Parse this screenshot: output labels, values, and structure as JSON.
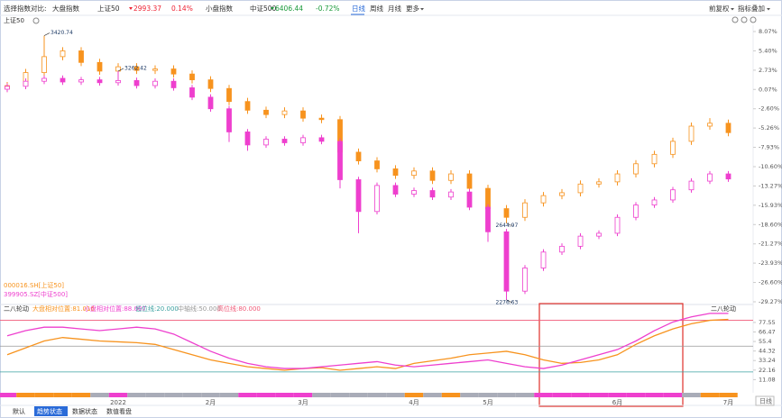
{
  "toolbar": {
    "compare_label": "选择指数对比:",
    "large_label": "大盘指数",
    "large_index": "上证50",
    "large_price": "2993.37",
    "large_change": "0.14%",
    "small_label": "小盘指数",
    "small_index": "中证500",
    "small_price": "6406.44",
    "small_change": "-0.72%",
    "periods": [
      "日线",
      "周线",
      "月线",
      "更多"
    ],
    "adjust": "前复权",
    "overlay": "指标叠加"
  },
  "index_selector": "上证50",
  "chart_data": [
    {
      "type": "candlestick",
      "categories": [
        null,
        null,
        null,
        null,
        null,
        null,
        "2022",
        null,
        null,
        null,
        null,
        "2月",
        null,
        null,
        null,
        null,
        "3月",
        null,
        null,
        null,
        null,
        null,
        "4月",
        null,
        null,
        null,
        "5月",
        null,
        null,
        null,
        null,
        null,
        null,
        "6月",
        null,
        null,
        null,
        null,
        null,
        "7月"
      ],
      "ylim": [
        -29.27,
        8.07
      ],
      "yticks": [
        {
          "value": 8.07,
          "label": "8.07%"
        },
        {
          "value": 5.4,
          "label": "5.40%"
        },
        {
          "value": 2.73,
          "label": "2.73%"
        },
        {
          "value": 0.07,
          "label": "0.07%"
        },
        {
          "value": -2.6,
          "label": "-2.60%"
        },
        {
          "value": -5.26,
          "label": "-5.26%"
        },
        {
          "value": -7.93,
          "label": "-7.93%"
        },
        {
          "value": -10.6,
          "label": "-10.60%"
        },
        {
          "value": -13.27,
          "label": "-13.27%"
        },
        {
          "value": -15.93,
          "label": "-15.93%"
        },
        {
          "value": -18.6,
          "label": "-18.60%"
        },
        {
          "value": -21.27,
          "label": "-21.27%"
        },
        {
          "value": -23.93,
          "label": "-23.93%"
        },
        {
          "value": -26.6,
          "label": "-26.60%"
        },
        {
          "value": -29.27,
          "label": "-29.27%"
        }
      ],
      "series": [
        {
          "name": "000016.SH[上证50]",
          "color": "#f7931e",
          "ohlc": [
            [
              0.2,
              1.1,
              -0.3,
              0.6
            ],
            [
              0.6,
              2.9,
              0.1,
              2.4
            ],
            [
              2.4,
              7.5,
              1.9,
              4.6
            ],
            [
              4.6,
              5.9,
              4.1,
              5.4
            ],
            [
              5.4,
              5.9,
              3.3,
              3.8
            ],
            [
              3.8,
              4.3,
              2.1,
              2.6
            ],
            [
              2.6,
              3.7,
              2.1,
              3.2
            ],
            [
              3.2,
              3.7,
              2.2,
              2.7
            ],
            [
              2.7,
              3.4,
              2.2,
              2.9
            ],
            [
              2.9,
              3.4,
              1.7,
              2.2
            ],
            [
              2.2,
              2.7,
              0.9,
              1.4
            ],
            [
              1.4,
              1.9,
              -0.3,
              0.2
            ],
            [
              0.2,
              0.7,
              -2.1,
              -1.6
            ],
            [
              -1.6,
              -1.1,
              -3.3,
              -2.8
            ],
            [
              -2.8,
              -2.3,
              -3.9,
              -3.4
            ],
            [
              -3.4,
              -2.4,
              -3.9,
              -2.9
            ],
            [
              -2.9,
              -2.4,
              -4.4,
              -3.9
            ],
            [
              -3.9,
              -3.4,
              -4.6,
              -4.1
            ],
            [
              -4.1,
              -3.6,
              -9.1,
              -8.6
            ],
            [
              -8.6,
              -8.1,
              -10.3,
              -9.8
            ],
            [
              -9.8,
              -9.3,
              -11.4,
              -10.9
            ],
            [
              -10.9,
              -10.4,
              -12.3,
              -11.8
            ],
            [
              -11.8,
              -10.7,
              -12.3,
              -11.2
            ],
            [
              -11.2,
              -10.7,
              -13.0,
              -12.5
            ],
            [
              -12.5,
              -11.1,
              -13.0,
              -11.6
            ],
            [
              -11.6,
              -11.1,
              -14.1,
              -13.6
            ],
            [
              -13.6,
              -13.1,
              -16.9,
              -16.4
            ],
            [
              -16.4,
              -15.9,
              -18.4,
              -17.6
            ],
            [
              -17.6,
              -15.1,
              -18.1,
              -15.6
            ],
            [
              -15.6,
              -14.1,
              -16.1,
              -14.6
            ],
            [
              -14.6,
              -13.7,
              -15.1,
              -14.2
            ],
            [
              -14.2,
              -12.5,
              -14.7,
              -13.0
            ],
            [
              -13.0,
              -12.2,
              -13.5,
              -12.7
            ],
            [
              -12.7,
              -11.1,
              -13.2,
              -11.6
            ],
            [
              -11.6,
              -9.7,
              -12.1,
              -10.2
            ],
            [
              -10.2,
              -8.4,
              -10.7,
              -8.9
            ],
            [
              -8.9,
              -6.6,
              -9.4,
              -7.1
            ],
            [
              -7.1,
              -4.5,
              -7.6,
              -5.0
            ],
            [
              -5.0,
              -3.9,
              -5.5,
              -4.6
            ],
            [
              -4.6,
              -4.1,
              -6.4,
              -5.9
            ]
          ],
          "annotations": [
            {
              "index": 2,
              "text": "3420.74"
            },
            {
              "index": 27,
              "text": "2644.97"
            }
          ]
        },
        {
          "name": "399905.SZ[中证500]",
          "color": "#ee3fce",
          "ohlc": [
            [
              0.1,
              0.9,
              -0.3,
              0.5
            ],
            [
              0.5,
              1.6,
              0.1,
              1.2
            ],
            [
              1.2,
              2.0,
              0.8,
              1.6
            ],
            [
              1.6,
              2.0,
              0.7,
              1.1
            ],
            [
              1.1,
              1.8,
              0.7,
              1.4
            ],
            [
              1.4,
              1.8,
              0.6,
              1.0
            ],
            [
              1.0,
              2.6,
              0.6,
              1.3
            ],
            [
              1.3,
              1.7,
              0.2,
              0.6
            ],
            [
              0.6,
              1.6,
              0.2,
              1.2
            ],
            [
              1.2,
              1.6,
              -0.1,
              0.3
            ],
            [
              0.3,
              0.7,
              -1.4,
              -1.0
            ],
            [
              -1.0,
              -0.6,
              -3.0,
              -2.6
            ],
            [
              -2.6,
              -2.2,
              -7.2,
              -5.8
            ],
            [
              -5.8,
              -5.4,
              -8.4,
              -7.6
            ],
            [
              -7.6,
              -6.4,
              -8.0,
              -6.8
            ],
            [
              -6.8,
              -6.4,
              -7.7,
              -7.3
            ],
            [
              -7.3,
              -6.2,
              -7.7,
              -6.6
            ],
            [
              -6.6,
              -6.2,
              -7.5,
              -7.1
            ],
            [
              -7.1,
              -6.7,
              -13.6,
              -12.4
            ],
            [
              -12.4,
              -12.0,
              -19.8,
              -16.8
            ],
            [
              -16.8,
              -12.8,
              -17.2,
              -13.2
            ],
            [
              -13.2,
              -12.8,
              -14.8,
              -14.4
            ],
            [
              -14.4,
              -13.5,
              -14.8,
              -13.9
            ],
            [
              -13.9,
              -13.5,
              -15.2,
              -14.8
            ],
            [
              -14.8,
              -13.7,
              -15.2,
              -14.1
            ],
            [
              -14.1,
              -13.7,
              -16.6,
              -16.2
            ],
            [
              -16.2,
              -15.8,
              -21.0,
              -19.6
            ],
            [
              -19.6,
              -19.2,
              -29.0,
              -27.8
            ],
            [
              -27.8,
              -24.2,
              -28.2,
              -24.6
            ],
            [
              -24.6,
              -22.0,
              -25.0,
              -22.4
            ],
            [
              -22.4,
              -21.2,
              -22.8,
              -21.6
            ],
            [
              -21.6,
              -19.8,
              -22.0,
              -20.2
            ],
            [
              -20.2,
              -19.4,
              -20.6,
              -19.8
            ],
            [
              -19.8,
              -17.2,
              -20.2,
              -17.6
            ],
            [
              -17.6,
              -15.5,
              -18.0,
              -15.9
            ],
            [
              -15.9,
              -14.8,
              -16.3,
              -15.2
            ],
            [
              -15.2,
              -13.4,
              -15.6,
              -13.8
            ],
            [
              -13.8,
              -12.2,
              -14.2,
              -12.6
            ],
            [
              -12.6,
              -11.2,
              -13.0,
              -11.6
            ],
            [
              -11.6,
              -11.2,
              -12.7,
              -12.3
            ]
          ],
          "annotations": [
            {
              "index": 6,
              "text": "3262.42"
            },
            {
              "index": 27,
              "text": "2276.63"
            }
          ]
        }
      ]
    },
    {
      "type": "line",
      "title": "二八轮动",
      "ylim": [
        0,
        90
      ],
      "yticks": [
        77.55,
        66.47,
        55.4,
        44.32,
        33.24,
        22.16,
        11.08
      ],
      "series": [
        {
          "name": "大盘相对位置:81.016",
          "color": "#f7931e",
          "values": [
            40,
            48,
            56,
            60,
            58,
            56,
            55,
            54,
            52,
            46,
            40,
            34,
            30,
            26,
            24,
            22,
            24,
            25,
            22,
            24,
            26,
            24,
            30,
            33,
            36,
            40,
            42,
            44,
            40,
            34,
            30,
            31,
            34,
            40,
            52,
            62,
            70,
            76,
            80,
            81.016
          ]
        },
        {
          "name": "小盘相对位置:88.007",
          "color": "#ee3fce",
          "values": [
            62,
            68,
            72,
            72,
            70,
            68,
            70,
            72,
            70,
            64,
            54,
            44,
            36,
            30,
            26,
            24,
            24,
            26,
            28,
            30,
            32,
            28,
            26,
            28,
            30,
            32,
            34,
            30,
            26,
            24,
            28,
            34,
            40,
            46,
            56,
            68,
            78,
            84,
            88,
            88.007
          ]
        }
      ],
      "ref_lines": [
        {
          "name": "低位线:20.000",
          "value": 20,
          "color": "#3aa0a0"
        },
        {
          "name": "中轴线:50.000",
          "value": 50,
          "color": "#999999"
        },
        {
          "name": "高位线:80.000",
          "value": 80,
          "color": "#f05a78"
        }
      ],
      "state_colors": [
        "#ee3fce",
        "#f7931e",
        "#f7931e",
        "#f7931e",
        "#f7931e",
        "#a9acb8",
        "#ee3fce",
        "#a9acb8",
        "#a9acb8",
        "#a9acb8",
        "#a9acb8",
        "#a9acb8",
        "#a9acb8",
        "#ee3fce",
        "#ee3fce",
        "#ee3fce",
        "#ee3fce",
        "#a9acb8",
        "#a9acb8",
        "#a9acb8",
        "#a9acb8",
        "#a9acb8",
        "#f7931e",
        "#a9acb8",
        "#f7931e",
        "#a9acb8",
        "#a9acb8",
        "#a9acb8",
        "#a9acb8",
        "#ee3fce",
        "#ee3fce",
        "#ee3fce",
        "#ee3fce",
        "#ee3fce",
        "#ee3fce",
        "#ee3fce",
        "#ee3fce",
        "#a9acb8",
        "#f7931e",
        "#f7931e"
      ]
    }
  ],
  "tabs": [
    "默认",
    "趋势状态",
    "数据状态",
    "数值看盘"
  ],
  "period_button": "日线"
}
